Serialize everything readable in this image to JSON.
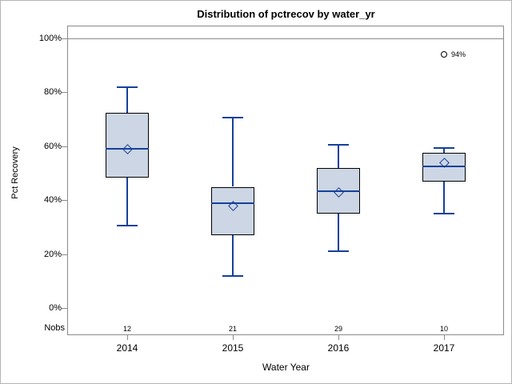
{
  "title": "Distribution of pctrecov by water_yr",
  "chart_data": {
    "type": "box",
    "title": "Distribution of pctrecov by water_yr",
    "xlabel": "Water Year",
    "ylabel": "Pct Recovery",
    "ylim": [
      0,
      100
    ],
    "y_ticks": [
      "100%",
      "80%",
      "60%",
      "40%",
      "20%",
      "0%"
    ],
    "y_tick_values": [
      100,
      80,
      60,
      40,
      20,
      0
    ],
    "refline_value": 100,
    "grid": "off",
    "nobs_label": "Nobs",
    "categories": [
      "2014",
      "2015",
      "2016",
      "2017"
    ],
    "nobs": [
      12,
      21,
      29,
      10
    ],
    "series": [
      {
        "category": "2014",
        "min": 30.5,
        "q1": 48.5,
        "median": 59,
        "mean": 59,
        "q3": 72.5,
        "max": 82,
        "nobs": 12,
        "outliers": []
      },
      {
        "category": "2015",
        "min": 12,
        "q1": 27,
        "median": 39,
        "mean": 38,
        "q3": 45,
        "max": 70.5,
        "nobs": 21,
        "outliers": []
      },
      {
        "category": "2016",
        "min": 21,
        "q1": 35,
        "median": 43.5,
        "mean": 43,
        "q3": 52,
        "max": 60.5,
        "nobs": 29,
        "outliers": []
      },
      {
        "category": "2017",
        "min": 35,
        "q1": 47,
        "median": 52.5,
        "mean": 54,
        "q3": 57.5,
        "max": 59.5,
        "nobs": 10,
        "outliers": [
          {
            "value": 94,
            "label": "94%"
          }
        ]
      }
    ],
    "colors": {
      "box_fill": "#ccd6e4",
      "box_edge": "#000000",
      "line": "#16409a",
      "frame": "#8b8b8b",
      "text": "#000000",
      "background": "#ffffff"
    }
  }
}
